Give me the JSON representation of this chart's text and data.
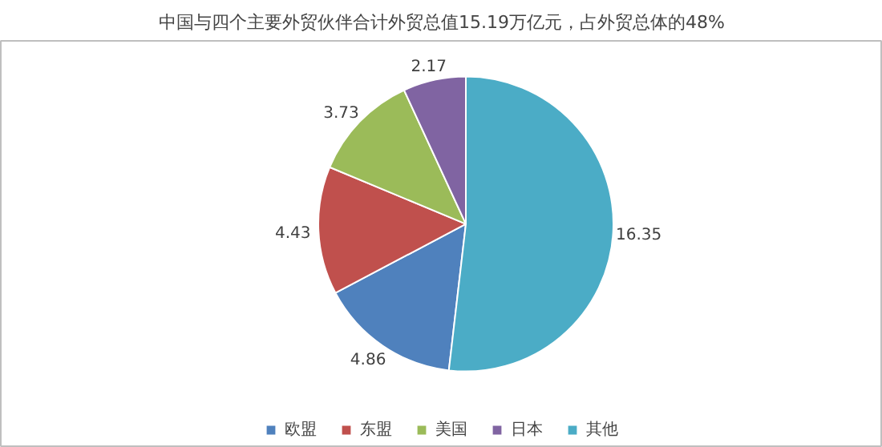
{
  "chart_data": {
    "type": "pie",
    "title": "中国与四个主要外贸伙伴合计外贸总值15.19万亿元，占外贸总体的48%",
    "categories": [
      "欧盟",
      "东盟",
      "美国",
      "日本",
      "其他"
    ],
    "values": [
      4.86,
      4.43,
      3.73,
      2.17,
      16.35
    ],
    "colors": [
      "#4f81bd",
      "#c0504d",
      "#9bbb59",
      "#8064a2",
      "#4bacc6"
    ],
    "data_labels": true,
    "legend": "bottom"
  }
}
